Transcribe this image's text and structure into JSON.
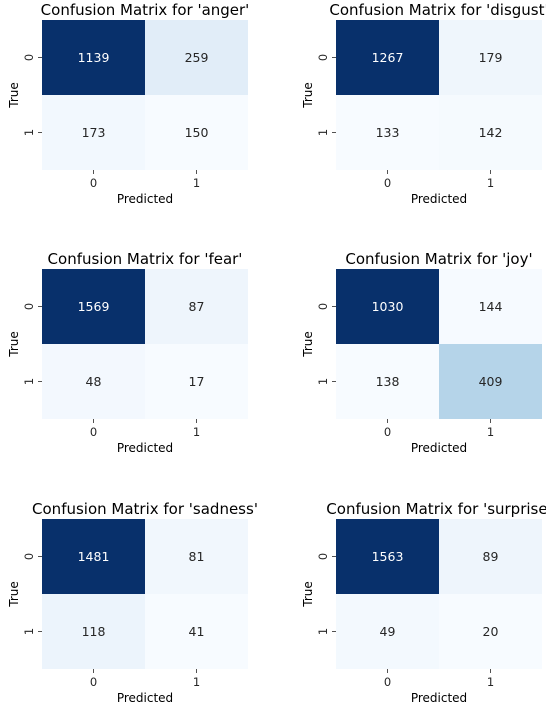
{
  "chart_data": [
    {
      "type": "heatmap",
      "title": "Confusion Matrix for 'anger'",
      "xlabel": "Predicted",
      "ylabel": "True",
      "x_categories": [
        "0",
        "1"
      ],
      "y_categories": [
        "0",
        "1"
      ],
      "values": [
        [
          1139,
          259
        ],
        [
          173,
          150
        ]
      ],
      "colormap": "Blues"
    },
    {
      "type": "heatmap",
      "title": "Confusion Matrix for 'disgust'",
      "xlabel": "Predicted",
      "ylabel": "True",
      "x_categories": [
        "0",
        "1"
      ],
      "y_categories": [
        "0",
        "1"
      ],
      "values": [
        [
          1267,
          179
        ],
        [
          133,
          142
        ]
      ],
      "colormap": "Blues"
    },
    {
      "type": "heatmap",
      "title": "Confusion Matrix for 'fear'",
      "xlabel": "Predicted",
      "ylabel": "True",
      "x_categories": [
        "0",
        "1"
      ],
      "y_categories": [
        "0",
        "1"
      ],
      "values": [
        [
          1569,
          87
        ],
        [
          48,
          17
        ]
      ],
      "colormap": "Blues"
    },
    {
      "type": "heatmap",
      "title": "Confusion Matrix for 'joy'",
      "xlabel": "Predicted",
      "ylabel": "True",
      "x_categories": [
        "0",
        "1"
      ],
      "y_categories": [
        "0",
        "1"
      ],
      "values": [
        [
          1030,
          144
        ],
        [
          138,
          409
        ]
      ],
      "colormap": "Blues"
    },
    {
      "type": "heatmap",
      "title": "Confusion Matrix for 'sadness'",
      "xlabel": "Predicted",
      "ylabel": "True",
      "x_categories": [
        "0",
        "1"
      ],
      "y_categories": [
        "0",
        "1"
      ],
      "values": [
        [
          1481,
          81
        ],
        [
          118,
          41
        ]
      ],
      "colormap": "Blues"
    },
    {
      "type": "heatmap",
      "title": "Confusion Matrix for 'surprise'",
      "xlabel": "Predicted",
      "ylabel": "True",
      "x_categories": [
        "0",
        "1"
      ],
      "y_categories": [
        "0",
        "1"
      ],
      "values": [
        [
          1563,
          89
        ],
        [
          49,
          20
        ]
      ],
      "colormap": "Blues"
    }
  ]
}
